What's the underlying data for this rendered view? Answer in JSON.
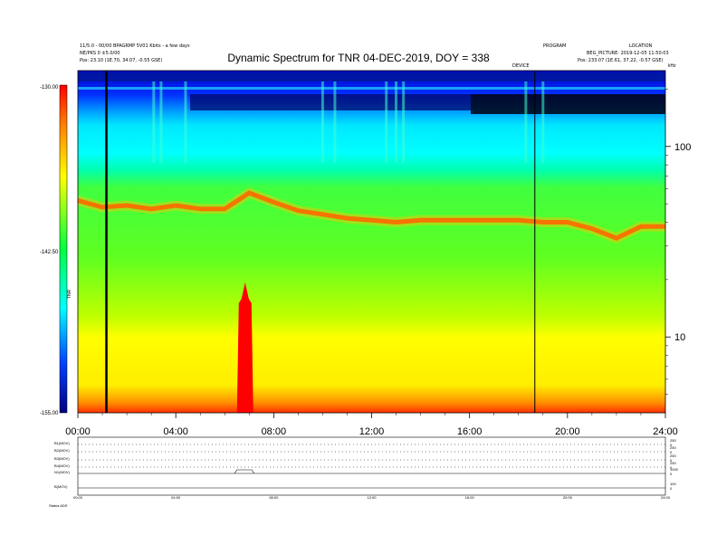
{
  "header": {
    "title": "Dynamic Spectrum for TNR 04-DEC-2019, DOY = 338",
    "left_line1": "11/5.0 - 00/00 BPAGRMP 5V01 Kbits - a few days",
    "left_line2": "NE/PKS 0 ±5.0/00",
    "left_line3": "Pos: 23.10 (1E.70, 34.07, -0.55 GSE)",
    "right_line1": "PROGRAM",
    "right_line2": "BEG_PICTURE: 2019-12-05 11:50:03",
    "right_line3": "Pos: 233.07 (1E.61, 37.22, -0.57 GSE)",
    "right_corner": "LOCATION",
    "marker_label": "DEVICE"
  },
  "colorbar": {
    "label": "TNR",
    "tick_top": "-130.00",
    "tick_mid": "-142.50",
    "tick_bottom": "-155.00"
  },
  "right_axis": {
    "unit": "kHz"
  },
  "bottom_panels": {
    "labels": [
      "B1(MOV)",
      "B2(MOV)",
      "B3(MOV)",
      "B4(MOV)",
      "N1(MOV)",
      "B(MOV)"
    ],
    "footer": "Status  ADS",
    "mini_ticks": [
      "00:00",
      "04:00",
      "08:00",
      "12:00",
      "16:00",
      "20:00",
      "24:00"
    ],
    "right_values": [
      "250",
      "0",
      "250",
      "0",
      "250",
      "0",
      "250",
      "0",
      "1000",
      "0",
      "100",
      "0"
    ]
  },
  "colors": {
    "background": "#0000cc",
    "colormap": [
      "#000080",
      "#0000ff",
      "#0080ff",
      "#00ffff",
      "#00ff80",
      "#80ff00",
      "#ffff00",
      "#ff8000",
      "#ff0000"
    ]
  },
  "chart_data": {
    "type": "heatmap",
    "title": "Dynamic Spectrum for TNR 04-DEC-2019, DOY = 338",
    "x_axis": {
      "label": "",
      "range": [
        "00:00",
        "24:00"
      ],
      "ticks": [
        "00:00",
        "04:00",
        "08:00",
        "12:00",
        "16:00",
        "20:00",
        "24:00"
      ]
    },
    "y_axis": {
      "label": "kHz",
      "scale": "log",
      "range": [
        4,
        250
      ],
      "ticks": [
        10,
        100
      ]
    },
    "color_scale": {
      "label": "TNR",
      "min": -155.0,
      "max": -130.0,
      "ticks": [
        -155.0,
        -142.5,
        -130.0
      ]
    },
    "plasma_line_frequency": {
      "hours": [
        0,
        1,
        2,
        3,
        4,
        5,
        6,
        7,
        8,
        9,
        10,
        11,
        12,
        13,
        14,
        15,
        16,
        17,
        18,
        19,
        20,
        21,
        22,
        23,
        24
      ],
      "khz": [
        52,
        48,
        49,
        47,
        49,
        47,
        47,
        57,
        51,
        46,
        44,
        42,
        41,
        40,
        41,
        41,
        41,
        41,
        41,
        40,
        40,
        37,
        33,
        38,
        38
      ]
    },
    "burst_interval": [
      "06:30",
      "07:10"
    ],
    "vertical_markers": [
      "01:10",
      "18:40"
    ],
    "grid": false
  }
}
